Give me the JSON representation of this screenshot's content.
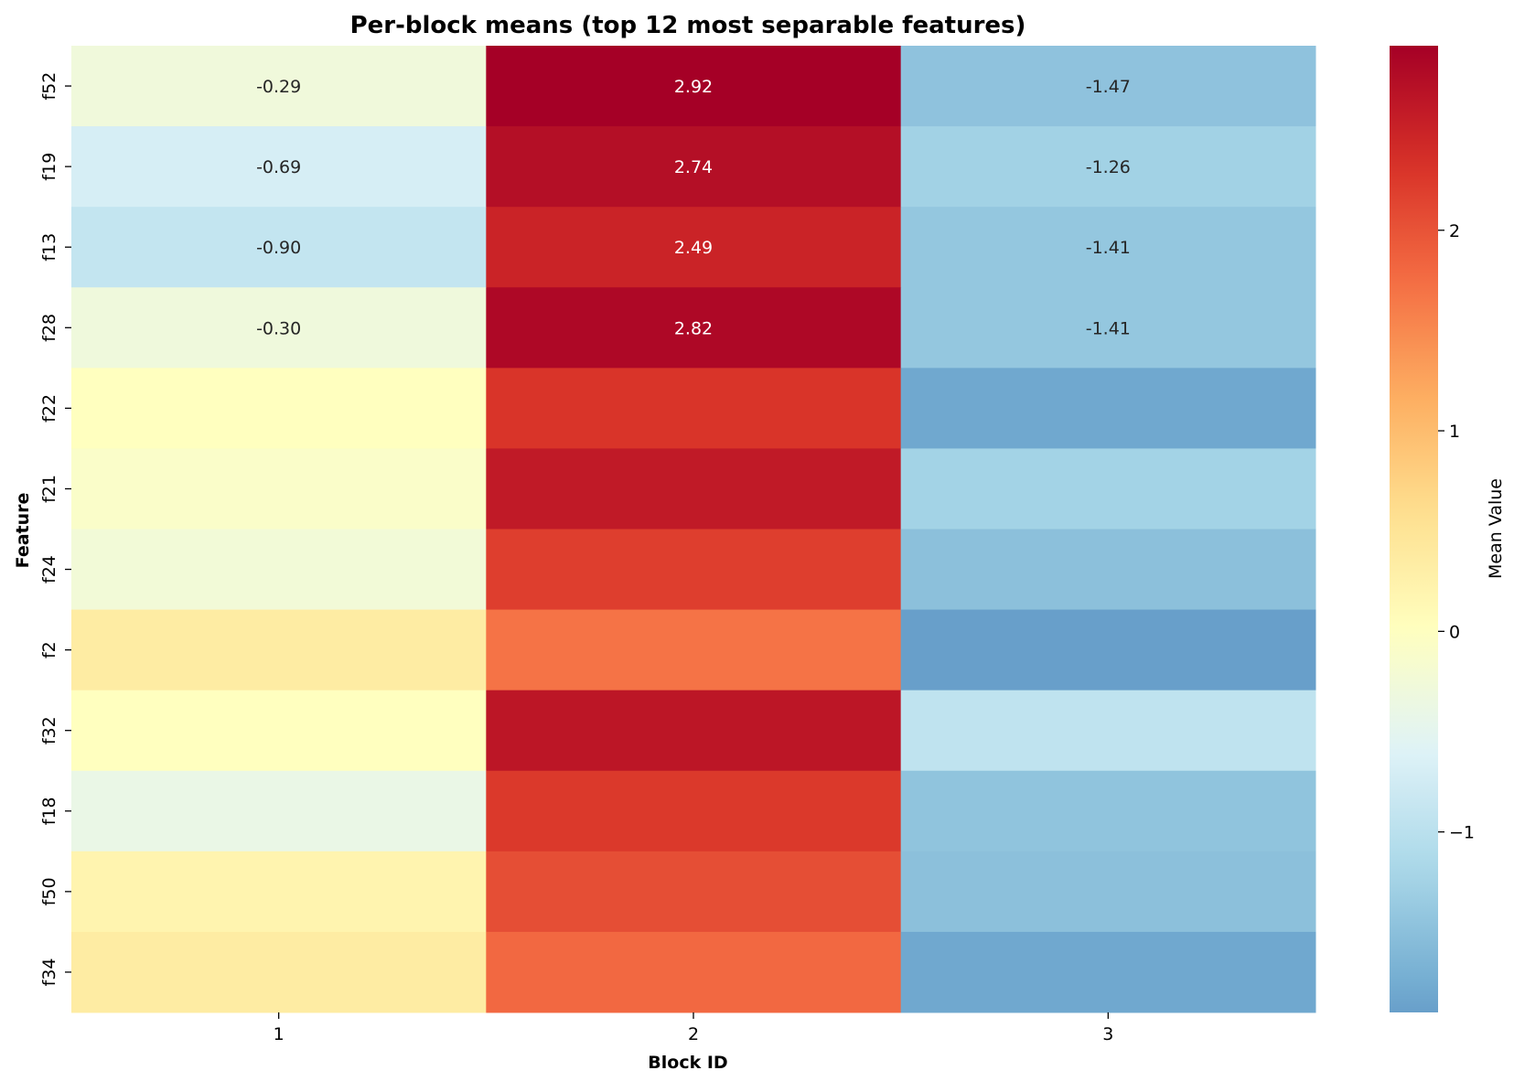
{
  "chart_data": {
    "type": "heatmap",
    "title": "Per-block means (top 12 most separable features)",
    "xlabel": "Block ID",
    "ylabel": "Feature",
    "x_categories": [
      "1",
      "2",
      "3"
    ],
    "y_categories": [
      "f52",
      "f19",
      "f13",
      "f28",
      "f22",
      "f21",
      "f24",
      "f2",
      "f32",
      "f18",
      "f50",
      "f34"
    ],
    "values": [
      [
        -0.29,
        2.92,
        -1.47
      ],
      [
        -0.69,
        2.74,
        -1.26
      ],
      [
        -0.9,
        2.49,
        -1.41
      ],
      [
        -0.3,
        2.82,
        -1.41
      ],
      [
        0.0,
        2.3,
        -1.8
      ],
      [
        -0.1,
        2.6,
        -1.25
      ],
      [
        -0.25,
        2.2,
        -1.5
      ],
      [
        0.35,
        1.7,
        -1.9
      ],
      [
        0.0,
        2.65,
        -0.95
      ],
      [
        -0.4,
        2.25,
        -1.45
      ],
      [
        0.2,
        2.05,
        -1.5
      ],
      [
        0.35,
        1.8,
        -1.8
      ]
    ],
    "annotated_rows": 4,
    "colormap": "RdYlBu_r",
    "vmin": -1.9,
    "vmax": 2.92,
    "colorbar": {
      "label": "Mean Value",
      "ticks": [
        -1,
        0,
        1,
        2
      ],
      "tick_labels": [
        "−1",
        "0",
        "1",
        "2"
      ]
    },
    "grid": false
  }
}
